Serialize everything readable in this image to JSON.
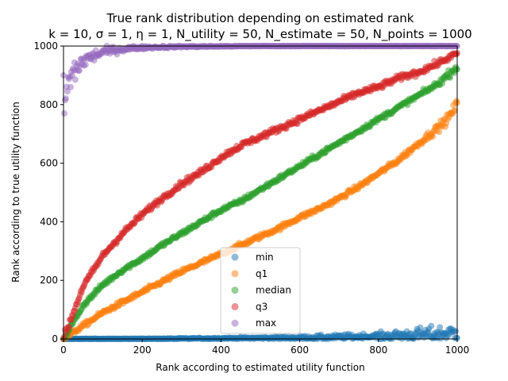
{
  "chart_data": {
    "type": "scatter",
    "title_line1": "True rank distribution depending on estimated rank",
    "title_line2": "k = 10, σ = 1, η = 1, N_utility = 50, N_estimate = 50, N_points = 1000",
    "xlabel": "Rank according to estimated utility function",
    "ylabel": "Rank according to true utility function",
    "xlim": [
      0,
      1000
    ],
    "ylim": [
      0,
      1000
    ],
    "xticks": [
      0,
      200,
      400,
      600,
      800,
      1000
    ],
    "yticks": [
      0,
      200,
      400,
      600,
      800,
      1000
    ],
    "legend_loc": "lower center",
    "series": [
      {
        "name": "min",
        "color": "#1f77b4",
        "x": [
          0,
          100,
          200,
          300,
          400,
          500,
          600,
          700,
          800,
          900,
          1000
        ],
        "y": [
          0,
          0,
          0,
          1,
          2,
          3,
          4,
          6,
          9,
          14,
          20
        ],
        "spread": [
          1,
          1,
          1,
          2,
          3,
          4,
          6,
          9,
          12,
          22,
          30
        ]
      },
      {
        "name": "q1",
        "color": "#ff7f0e",
        "x": [
          0,
          50,
          100,
          150,
          200,
          250,
          300,
          350,
          400,
          450,
          500,
          550,
          600,
          650,
          700,
          750,
          800,
          850,
          900,
          950,
          975,
          1000
        ],
        "y": [
          0,
          45,
          90,
          125,
          160,
          195,
          230,
          260,
          290,
          320,
          350,
          380,
          415,
          445,
          480,
          520,
          565,
          610,
          665,
          720,
          750,
          800
        ],
        "spread": [
          6,
          8,
          8,
          8,
          8,
          8,
          8,
          8,
          8,
          8,
          8,
          8,
          8,
          8,
          8,
          8,
          8,
          10,
          10,
          14,
          16,
          20
        ]
      },
      {
        "name": "median",
        "color": "#2ca02c",
        "x": [
          0,
          50,
          100,
          150,
          200,
          250,
          300,
          350,
          400,
          450,
          500,
          550,
          600,
          650,
          700,
          750,
          800,
          850,
          900,
          950,
          1000
        ],
        "y": [
          0,
          115,
          185,
          235,
          275,
          320,
          360,
          400,
          440,
          470,
          510,
          550,
          590,
          630,
          670,
          710,
          750,
          790,
          830,
          870,
          930
        ],
        "spread": [
          10,
          8,
          8,
          8,
          8,
          8,
          8,
          8,
          8,
          8,
          8,
          8,
          8,
          8,
          8,
          8,
          8,
          8,
          8,
          10,
          14
        ]
      },
      {
        "name": "q3",
        "color": "#d62728",
        "x": [
          0,
          50,
          100,
          150,
          200,
          250,
          300,
          350,
          400,
          450,
          500,
          550,
          600,
          650,
          700,
          750,
          800,
          850,
          900,
          950,
          1000
        ],
        "y": [
          0,
          180,
          285,
          360,
          425,
          480,
          530,
          570,
          620,
          660,
          690,
          720,
          750,
          780,
          810,
          840,
          860,
          890,
          910,
          940,
          975
        ],
        "spread": [
          14,
          10,
          10,
          10,
          10,
          10,
          10,
          10,
          10,
          10,
          10,
          10,
          10,
          10,
          10,
          10,
          10,
          10,
          10,
          10,
          10
        ]
      },
      {
        "name": "max",
        "color": "#9467bd",
        "x": [
          0,
          20,
          50,
          100,
          150,
          200,
          300,
          400,
          500,
          700,
          1000
        ],
        "y": [
          800,
          900,
          950,
          980,
          990,
          995,
          998,
          999,
          1000,
          1000,
          1000
        ],
        "spread": [
          90,
          55,
          30,
          15,
          10,
          6,
          3,
          2,
          1,
          1,
          1
        ]
      }
    ]
  }
}
